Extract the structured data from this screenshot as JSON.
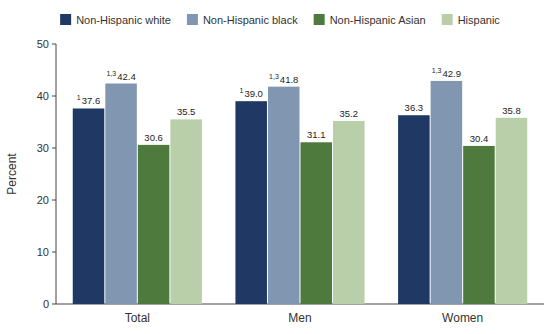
{
  "chart_data": {
    "type": "bar",
    "categories": [
      "Total",
      "Men",
      "Women"
    ],
    "series": [
      {
        "name": "Non-Hispanic white",
        "color": "#1f3864",
        "values": [
          37.6,
          39.0,
          36.3
        ]
      },
      {
        "name": "Non-Hispanic black",
        "color": "#8196b0",
        "values": [
          42.4,
          41.8,
          42.9
        ]
      },
      {
        "name": "Non-Hispanic Asian",
        "color": "#4e7a3e",
        "values": [
          30.6,
          31.1,
          30.4
        ]
      },
      {
        "name": "Hispanic",
        "color": "#b8cfaa",
        "values": [
          35.5,
          35.2,
          35.8
        ]
      }
    ],
    "y_label": "Percent",
    "ylim": [
      0,
      50
    ],
    "yticks": [
      0,
      10,
      20,
      30,
      40,
      50
    ],
    "grid": false,
    "legend": "top",
    "data_labels": true,
    "annotations": [
      {
        "text": "1",
        "series": "Non-Hispanic white",
        "category": "Total"
      },
      {
        "text": "1,3",
        "series": "Non-Hispanic black",
        "category": "Total"
      },
      {
        "text": "1",
        "series": "Non-Hispanic white",
        "category": "Men"
      },
      {
        "text": "1,3",
        "series": "Non-Hispanic black",
        "category": "Men"
      },
      {
        "text": "1,3",
        "series": "Non-Hispanic black",
        "category": "Women"
      }
    ]
  }
}
